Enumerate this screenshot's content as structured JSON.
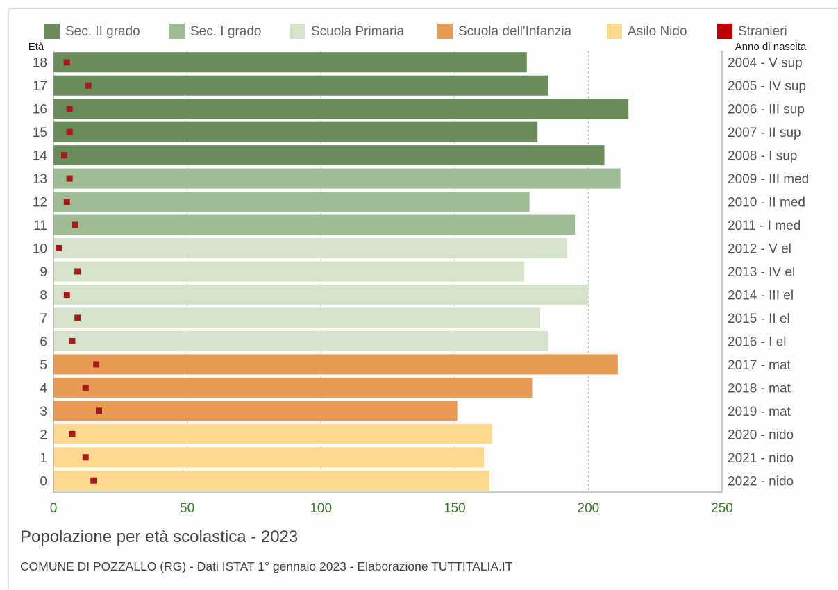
{
  "chart_data": {
    "type": "bar",
    "orientation": "horizontal",
    "title": "Popolazione per età scolastica - 2023",
    "subtitle": "COMUNE DI POZZALLO (RG) - Dati ISTAT 1° gennaio 2023 - Elaborazione TUTTITALIA.IT",
    "ylabel_left": "Età",
    "ylabel_right": "Anno di nascita",
    "xlim": [
      0,
      250
    ],
    "xticks": [
      0,
      50,
      100,
      150,
      200,
      250
    ],
    "grid": "vertical dashed",
    "legend_position": "top",
    "legend": [
      {
        "name": "Sec. II grado",
        "color": "#6a8c5a"
      },
      {
        "name": "Sec. I grado",
        "color": "#9fbd95"
      },
      {
        "name": "Scuola Primaria",
        "color": "#d6e3ca"
      },
      {
        "name": "Scuola dell'Infanzia",
        "color": "#e89b55"
      },
      {
        "name": "Asilo Nido",
        "color": "#fdd88f"
      },
      {
        "name": "Stranieri",
        "color": "#c00000"
      }
    ],
    "bars": [
      {
        "age": "18",
        "year_label": "2004 - V sup",
        "group": "Sec. II grado",
        "total": 177,
        "foreign": 5
      },
      {
        "age": "17",
        "year_label": "2005 - IV sup",
        "group": "Sec. II grado",
        "total": 185,
        "foreign": 13
      },
      {
        "age": "16",
        "year_label": "2006 - III sup",
        "group": "Sec. II grado",
        "total": 215,
        "foreign": 6
      },
      {
        "age": "15",
        "year_label": "2007 - II sup",
        "group": "Sec. II grado",
        "total": 181,
        "foreign": 6
      },
      {
        "age": "14",
        "year_label": "2008 - I sup",
        "group": "Sec. II grado",
        "total": 206,
        "foreign": 4
      },
      {
        "age": "13",
        "year_label": "2009 - III med",
        "group": "Sec. I grado",
        "total": 212,
        "foreign": 6
      },
      {
        "age": "12",
        "year_label": "2010 - II med",
        "group": "Sec. I grado",
        "total": 178,
        "foreign": 5
      },
      {
        "age": "11",
        "year_label": "2011 - I med",
        "group": "Sec. I grado",
        "total": 195,
        "foreign": 8
      },
      {
        "age": "10",
        "year_label": "2012 - V el",
        "group": "Scuola Primaria",
        "total": 192,
        "foreign": 2
      },
      {
        "age": "9",
        "year_label": "2013 - IV el",
        "group": "Scuola Primaria",
        "total": 176,
        "foreign": 9
      },
      {
        "age": "8",
        "year_label": "2014 - III el",
        "group": "Scuola Primaria",
        "total": 200,
        "foreign": 5
      },
      {
        "age": "7",
        "year_label": "2015 - II el",
        "group": "Scuola Primaria",
        "total": 182,
        "foreign": 9
      },
      {
        "age": "6",
        "year_label": "2016 - I el",
        "group": "Scuola Primaria",
        "total": 185,
        "foreign": 7
      },
      {
        "age": "5",
        "year_label": "2017 - mat",
        "group": "Scuola dell'Infanzia",
        "total": 211,
        "foreign": 16
      },
      {
        "age": "4",
        "year_label": "2018 - mat",
        "group": "Scuola dell'Infanzia",
        "total": 179,
        "foreign": 12
      },
      {
        "age": "3",
        "year_label": "2019 - mat",
        "group": "Scuola dell'Infanzia",
        "total": 151,
        "foreign": 17
      },
      {
        "age": "2",
        "year_label": "2020 - nido",
        "group": "Asilo Nido",
        "total": 164,
        "foreign": 7
      },
      {
        "age": "1",
        "year_label": "2021 - nido",
        "group": "Asilo Nido",
        "total": 161,
        "foreign": 12
      },
      {
        "age": "0",
        "year_label": "2022 - nido",
        "group": "Asilo Nido",
        "total": 163,
        "foreign": 15
      }
    ],
    "colors": {
      "axis_tick_labels": "#3a7a26",
      "category_labels": "#555555",
      "title": "#444444",
      "subtitle": "#444444"
    }
  }
}
